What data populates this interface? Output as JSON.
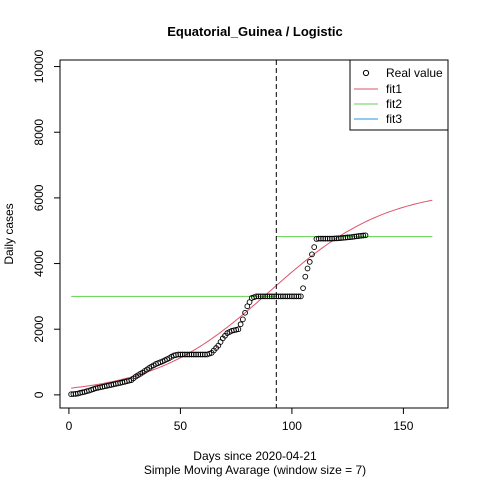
{
  "chart_data": {
    "type": "line",
    "title": "Equatorial_Guinea / Logistic",
    "xlabel": "Days since 2020-04-21",
    "xlabel2": "Simple Moving Avarage (window size = 7)",
    "ylabel": "Daily cases",
    "xlim": [
      -4,
      170
    ],
    "ylim": [
      -400,
      10200
    ],
    "x_ticks": [
      0,
      50,
      100,
      150
    ],
    "y_ticks": [
      0,
      2000,
      4000,
      6000,
      8000,
      10000
    ],
    "vline_x": 93,
    "legend": {
      "position": "top-right",
      "entries": [
        {
          "label": "Real value",
          "kind": "point",
          "color": "#000000"
        },
        {
          "label": "fit1",
          "kind": "line",
          "color": "#df536b"
        },
        {
          "label": "fit2",
          "kind": "line",
          "color": "#61d04f"
        },
        {
          "label": "fit3",
          "kind": "line",
          "color": "#2297e6"
        }
      ]
    },
    "real_value_knots": [
      [
        1,
        20
      ],
      [
        2,
        25
      ],
      [
        3,
        30
      ],
      [
        4,
        40
      ],
      [
        5,
        60
      ],
      [
        7,
        90
      ],
      [
        9,
        130
      ],
      [
        12,
        200
      ],
      [
        16,
        260
      ],
      [
        20,
        320
      ],
      [
        24,
        380
      ],
      [
        28,
        450
      ],
      [
        30,
        560
      ],
      [
        33,
        680
      ],
      [
        36,
        820
      ],
      [
        39,
        940
      ],
      [
        42,
        1020
      ],
      [
        45,
        1120
      ],
      [
        47,
        1200
      ],
      [
        49,
        1230
      ],
      [
        55,
        1230
      ],
      [
        62,
        1230
      ],
      [
        64,
        1280
      ],
      [
        67,
        1500
      ],
      [
        69,
        1720
      ],
      [
        71,
        1880
      ],
      [
        73,
        1950
      ],
      [
        76,
        2000
      ],
      [
        78,
        2300
      ],
      [
        80,
        2700
      ],
      [
        82,
        2950
      ],
      [
        84,
        3000
      ],
      [
        92,
        3000
      ],
      [
        100,
        3000
      ],
      [
        104,
        3000
      ],
      [
        105,
        3250
      ],
      [
        106,
        3600
      ],
      [
        107,
        3850
      ],
      [
        108,
        4050
      ],
      [
        109,
        4280
      ],
      [
        110,
        4500
      ],
      [
        111,
        4750
      ],
      [
        112,
        4760
      ],
      [
        115,
        4760
      ],
      [
        118,
        4760
      ],
      [
        121,
        4770
      ],
      [
        124,
        4790
      ],
      [
        127,
        4810
      ],
      [
        130,
        4840
      ],
      [
        133,
        4860
      ]
    ],
    "fit1": {
      "K": 6300,
      "r": 0.038,
      "x0": 90,
      "x_from": 1,
      "x_to": 163
    },
    "fit2": [
      {
        "x": [
          1,
          93
        ],
        "y": 3000
      },
      {
        "x": [
          93,
          163
        ],
        "y": 4820
      }
    ]
  }
}
